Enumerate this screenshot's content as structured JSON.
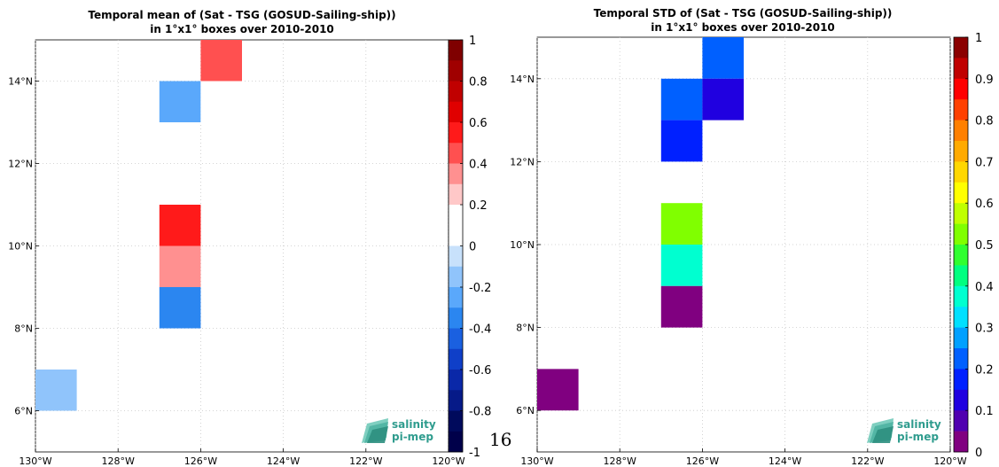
{
  "page_number": "16",
  "logo": {
    "line1": "salinity",
    "line2": "pi-mep"
  },
  "chart_data": [
    {
      "type": "heatmap",
      "title": "Temporal mean of (Sat - TSG (GOSUD-Sailing-ship))",
      "subtitle": "in 1°x1° boxes over 2010-2010",
      "x_ticks": [
        {
          "value": -130,
          "label": "130°W"
        },
        {
          "value": -128,
          "label": "128°W"
        },
        {
          "value": -126,
          "label": "126°W"
        },
        {
          "value": -124,
          "label": "124°W"
        },
        {
          "value": -122,
          "label": "122°W"
        },
        {
          "value": -120,
          "label": "120°W"
        }
      ],
      "y_ticks": [
        {
          "value": 6,
          "label": "6°N"
        },
        {
          "value": 8,
          "label": "8°N"
        },
        {
          "value": 10,
          "label": "10°N"
        },
        {
          "value": 12,
          "label": "12°N"
        },
        {
          "value": 14,
          "label": "14°N"
        }
      ],
      "xlim": [
        -130,
        -120
      ],
      "ylim": [
        5,
        15
      ],
      "grid": true,
      "cells": [
        {
          "lon": [
            -125,
            -126
          ],
          "lat": [
            14,
            15
          ],
          "value": 0.45
        },
        {
          "lon": [
            -127,
            -126
          ],
          "lat": [
            13,
            14
          ],
          "value": -0.25
        },
        {
          "lon": [
            -126,
            -125
          ],
          "lat": [
            13,
            14
          ],
          "value": 0.15
        },
        {
          "lon": [
            -127,
            -126
          ],
          "lat": [
            10,
            11
          ],
          "value": 0.55
        },
        {
          "lon": [
            -127,
            -126
          ],
          "lat": [
            9,
            10
          ],
          "value": 0.35
        },
        {
          "lon": [
            -127,
            -126
          ],
          "lat": [
            8,
            9
          ],
          "value": -0.35
        },
        {
          "lon": [
            -130,
            -129
          ],
          "lat": [
            6,
            7
          ],
          "value": -0.15
        }
      ],
      "colorbar": {
        "min": -1,
        "max": 1,
        "ticks": [
          "1",
          "0.8",
          "0.6",
          "0.4",
          "0.2",
          "0",
          "-0.2",
          "-0.4",
          "-0.6",
          "-0.8",
          "-1"
        ],
        "colors_top_to_bottom": [
          "#7f0000",
          "#a00000",
          "#c00000",
          "#e00000",
          "#ff1a1a",
          "#ff5050",
          "#ff9090",
          "#ffc8c8",
          "#ffffff",
          "#ffffff",
          "#c8e1fb",
          "#90c4fb",
          "#5aa8fb",
          "#2b86f0",
          "#1a60e0",
          "#0f3fc8",
          "#0a28a8",
          "#061a88",
          "#000a5c",
          "#00004a"
        ]
      }
    },
    {
      "type": "heatmap",
      "title": "Temporal STD of (Sat - TSG (GOSUD-Sailing-ship))",
      "subtitle": "in 1°x1° boxes over 2010-2010",
      "x_ticks": [
        {
          "value": -130,
          "label": "130°W"
        },
        {
          "value": -128,
          "label": "128°W"
        },
        {
          "value": -126,
          "label": "126°W"
        },
        {
          "value": -124,
          "label": "124°W"
        },
        {
          "value": -122,
          "label": "122°W"
        },
        {
          "value": -120,
          "label": "120°W"
        }
      ],
      "y_ticks": [
        {
          "value": 6,
          "label": "6°N"
        },
        {
          "value": 8,
          "label": "8°N"
        },
        {
          "value": 10,
          "label": "10°N"
        },
        {
          "value": 12,
          "label": "12°N"
        },
        {
          "value": 14,
          "label": "14°N"
        }
      ],
      "xlim": [
        -130,
        -120
      ],
      "ylim": [
        5,
        15
      ],
      "grid": true,
      "cells": [
        {
          "lon": [
            -126,
            -125
          ],
          "lat": [
            14,
            15
          ],
          "value": 0.22
        },
        {
          "lon": [
            -127,
            -126
          ],
          "lat": [
            13,
            14
          ],
          "value": 0.22
        },
        {
          "lon": [
            -126,
            -125
          ],
          "lat": [
            13,
            14
          ],
          "value": 0.12
        },
        {
          "lon": [
            -127,
            -126
          ],
          "lat": [
            12,
            13
          ],
          "value": 0.18
        },
        {
          "lon": [
            -127,
            -126
          ],
          "lat": [
            10,
            11
          ],
          "value": 0.52
        },
        {
          "lon": [
            -127,
            -126
          ],
          "lat": [
            9,
            10
          ],
          "value": 0.37
        },
        {
          "lon": [
            -127,
            -126
          ],
          "lat": [
            8,
            9
          ],
          "value": 0.04
        },
        {
          "lon": [
            -130,
            -129
          ],
          "lat": [
            6,
            7
          ],
          "value": 0.04
        }
      ],
      "colorbar": {
        "min": 0,
        "max": 1,
        "ticks": [
          "1",
          "0.9",
          "0.8",
          "0.7",
          "0.6",
          "0.5",
          "0.4",
          "0.3",
          "0.2",
          "0.1",
          "0"
        ],
        "colors_top_to_bottom": [
          "#8b0000",
          "#c00000",
          "#ff0000",
          "#ff4000",
          "#ff8000",
          "#ffaa00",
          "#ffd700",
          "#ffff00",
          "#c0ff00",
          "#80ff00",
          "#30ff30",
          "#00ff80",
          "#00ffd0",
          "#00e0ff",
          "#00a0ff",
          "#0060ff",
          "#0020ff",
          "#2000e0",
          "#5000b0",
          "#800080"
        ]
      }
    }
  ]
}
